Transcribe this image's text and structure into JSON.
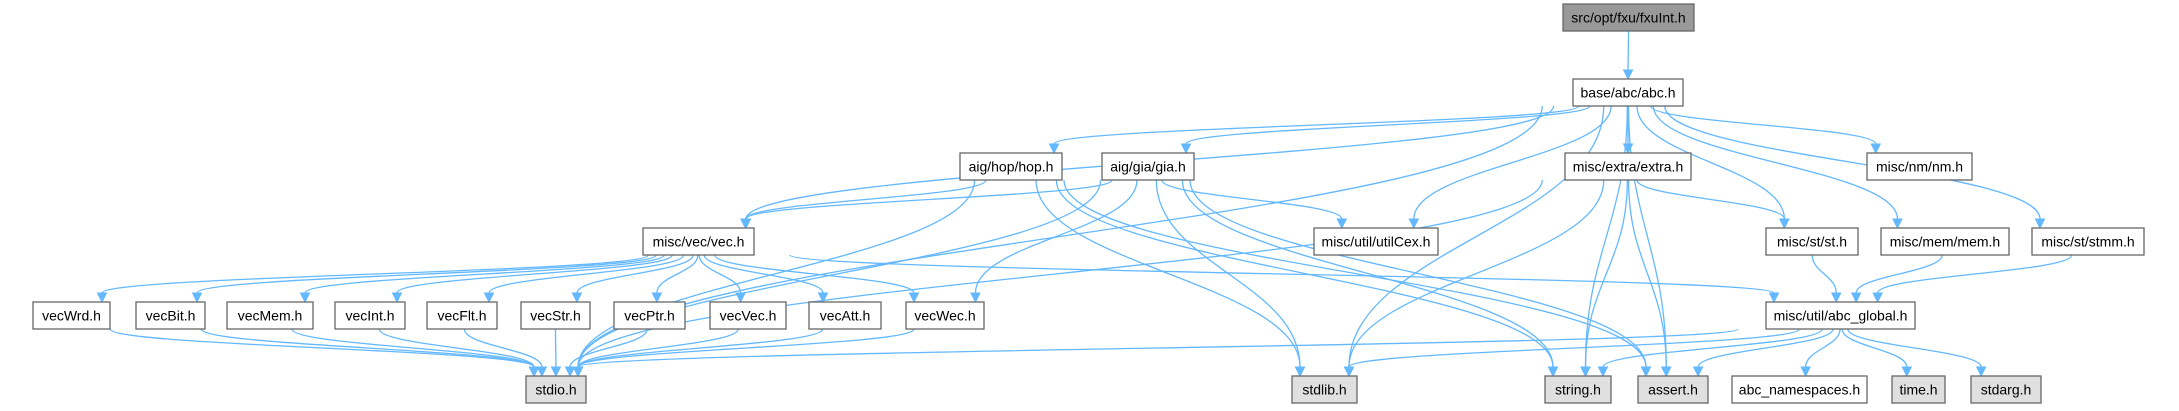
{
  "graph": {
    "nodes": [
      {
        "id": "fxuInt",
        "label": "src/opt/fxu/fxuInt.h",
        "style": "current"
      },
      {
        "id": "abc",
        "label": "base/abc/abc.h",
        "style": "linked"
      },
      {
        "id": "hop",
        "label": "aig/hop/hop.h",
        "style": "linked"
      },
      {
        "id": "gia",
        "label": "aig/gia/gia.h",
        "style": "linked"
      },
      {
        "id": "extra",
        "label": "misc/extra/extra.h",
        "style": "linked"
      },
      {
        "id": "nm",
        "label": "misc/nm/nm.h",
        "style": "linked"
      },
      {
        "id": "vec",
        "label": "misc/vec/vec.h",
        "style": "linked"
      },
      {
        "id": "utilCex",
        "label": "misc/util/utilCex.h",
        "style": "linked"
      },
      {
        "id": "st",
        "label": "misc/st/st.h",
        "style": "linked"
      },
      {
        "id": "mem",
        "label": "misc/mem/mem.h",
        "style": "linked"
      },
      {
        "id": "stmm",
        "label": "misc/st/stmm.h",
        "style": "linked"
      },
      {
        "id": "vecWrd",
        "label": "vecWrd.h",
        "style": "linked"
      },
      {
        "id": "vecBit",
        "label": "vecBit.h",
        "style": "linked"
      },
      {
        "id": "vecMem",
        "label": "vecMem.h",
        "style": "linked"
      },
      {
        "id": "vecInt",
        "label": "vecInt.h",
        "style": "linked"
      },
      {
        "id": "vecFlt",
        "label": "vecFlt.h",
        "style": "linked"
      },
      {
        "id": "vecStr",
        "label": "vecStr.h",
        "style": "linked"
      },
      {
        "id": "vecPtr",
        "label": "vecPtr.h",
        "style": "linked"
      },
      {
        "id": "vecVec",
        "label": "vecVec.h",
        "style": "linked"
      },
      {
        "id": "vecAtt",
        "label": "vecAtt.h",
        "style": "linked"
      },
      {
        "id": "vecWec",
        "label": "vecWec.h",
        "style": "linked"
      },
      {
        "id": "abc_global",
        "label": "misc/util/abc_global.h",
        "style": "linked"
      },
      {
        "id": "stdio",
        "label": "stdio.h",
        "style": "system"
      },
      {
        "id": "stdlib",
        "label": "stdlib.h",
        "style": "system"
      },
      {
        "id": "string",
        "label": "string.h",
        "style": "system"
      },
      {
        "id": "assert",
        "label": "assert.h",
        "style": "system"
      },
      {
        "id": "abc_namespaces",
        "label": "abc_namespaces.h",
        "style": "linked"
      },
      {
        "id": "time",
        "label": "time.h",
        "style": "system"
      },
      {
        "id": "stdarg",
        "label": "stdarg.h",
        "style": "system"
      }
    ],
    "edges": [
      [
        "fxuInt",
        "abc"
      ],
      [
        "abc",
        "hop"
      ],
      [
        "abc",
        "gia"
      ],
      [
        "abc",
        "extra"
      ],
      [
        "abc",
        "nm"
      ],
      [
        "abc",
        "vec"
      ],
      [
        "abc",
        "utilCex"
      ],
      [
        "abc",
        "st"
      ],
      [
        "abc",
        "mem"
      ],
      [
        "abc",
        "stmm"
      ],
      [
        "abc",
        "stdio"
      ],
      [
        "abc",
        "stdlib"
      ],
      [
        "abc",
        "string"
      ],
      [
        "abc",
        "assert"
      ],
      [
        "hop",
        "vec"
      ],
      [
        "hop",
        "stdio"
      ],
      [
        "hop",
        "stdlib"
      ],
      [
        "hop",
        "string"
      ],
      [
        "hop",
        "assert"
      ],
      [
        "gia",
        "vec"
      ],
      [
        "gia",
        "stdio"
      ],
      [
        "gia",
        "stdlib"
      ],
      [
        "gia",
        "string"
      ],
      [
        "gia",
        "assert"
      ],
      [
        "gia",
        "utilCex"
      ],
      [
        "gia",
        "vecWec"
      ],
      [
        "extra",
        "st"
      ],
      [
        "extra",
        "stdio"
      ],
      [
        "extra",
        "stdlib"
      ],
      [
        "extra",
        "string"
      ],
      [
        "extra",
        "assert"
      ],
      [
        "vec",
        "vecWrd"
      ],
      [
        "vec",
        "vecBit"
      ],
      [
        "vec",
        "vecMem"
      ],
      [
        "vec",
        "vecInt"
      ],
      [
        "vec",
        "vecFlt"
      ],
      [
        "vec",
        "vecStr"
      ],
      [
        "vec",
        "vecPtr"
      ],
      [
        "vec",
        "vecVec"
      ],
      [
        "vec",
        "vecAtt"
      ],
      [
        "vec",
        "vecWec"
      ],
      [
        "vec",
        "abc_global"
      ],
      [
        "vecWrd",
        "stdio"
      ],
      [
        "vecBit",
        "stdio"
      ],
      [
        "vecMem",
        "stdio"
      ],
      [
        "vecInt",
        "stdio"
      ],
      [
        "vecFlt",
        "stdio"
      ],
      [
        "vecStr",
        "stdio"
      ],
      [
        "vecPtr",
        "stdio"
      ],
      [
        "vecVec",
        "stdio"
      ],
      [
        "vecAtt",
        "stdio"
      ],
      [
        "vecWec",
        "stdio"
      ],
      [
        "st",
        "abc_global"
      ],
      [
        "mem",
        "abc_global"
      ],
      [
        "stmm",
        "abc_global"
      ],
      [
        "abc_global",
        "stdio"
      ],
      [
        "abc_global",
        "stdlib"
      ],
      [
        "abc_global",
        "string"
      ],
      [
        "abc_global",
        "assert"
      ],
      [
        "abc_global",
        "abc_namespaces"
      ],
      [
        "abc_global",
        "time"
      ],
      [
        "abc_global",
        "stdarg"
      ]
    ]
  },
  "colors": {
    "edge": "#63b8ff",
    "border": "#666666",
    "current_fill": "#999999",
    "system_fill": "#e0e0e0",
    "linked_fill": "#ffffff"
  }
}
